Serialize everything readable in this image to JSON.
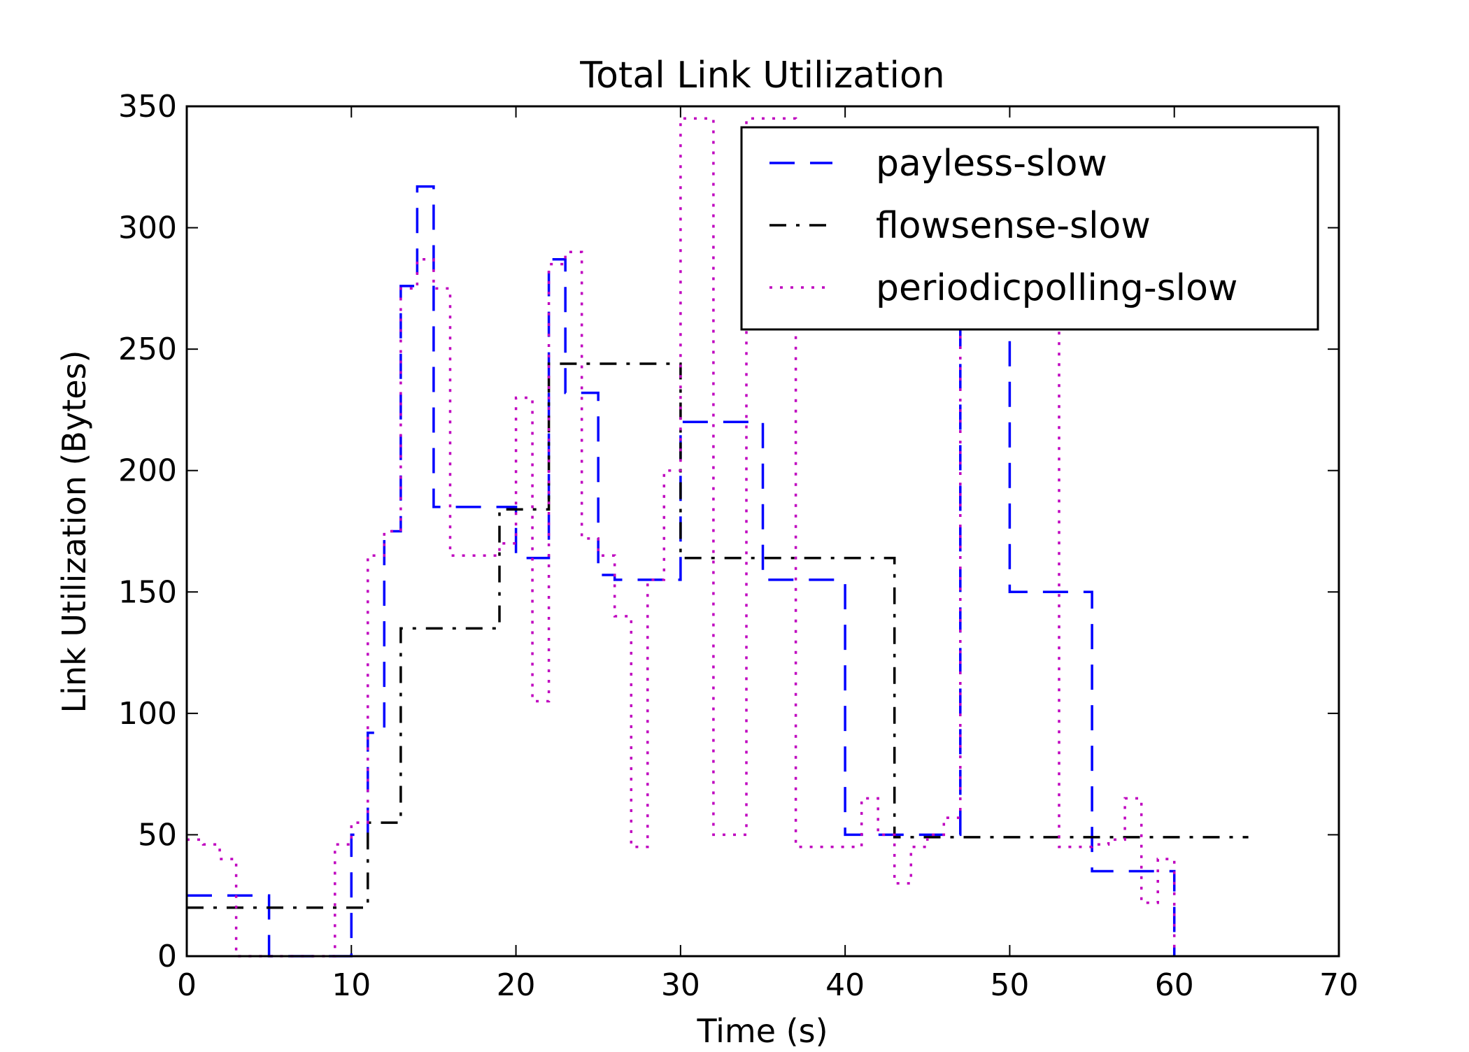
{
  "chart_data": {
    "type": "line",
    "title": "Total Link Utilization",
    "xlabel": "Time (s)",
    "ylabel": "Link Utilization (Bytes)",
    "xlim": [
      0,
      70
    ],
    "ylim": [
      0,
      350
    ],
    "xticks": [
      0,
      10,
      20,
      30,
      40,
      50,
      60,
      70
    ],
    "yticks": [
      0,
      50,
      100,
      150,
      200,
      250,
      300,
      350
    ],
    "xtick_labels": [
      "0",
      "10",
      "20",
      "30",
      "40",
      "50",
      "60",
      "70"
    ],
    "ytick_labels": [
      "0",
      "50",
      "100",
      "150",
      "200",
      "250",
      "300",
      "350"
    ],
    "grid": false,
    "legend_position": "top-right",
    "step": "post",
    "series": [
      {
        "name": "payless-slow",
        "color": "#0000ff",
        "dash": "dashed",
        "x": [
          0,
          3,
          5,
          10,
          11,
          12,
          13,
          14,
          15,
          20,
          22,
          23,
          25,
          26,
          30,
          35,
          40,
          46,
          47,
          50,
          55,
          57,
          60
        ],
        "y": [
          25,
          25,
          0,
          50,
          92,
          175,
          276,
          317,
          185,
          164,
          287,
          232,
          157,
          155,
          220,
          155,
          50,
          50,
          275,
          150,
          35,
          35,
          0
        ]
      },
      {
        "name": "flowsense-slow",
        "color": "#000000",
        "dash": "dashdot",
        "x": [
          0,
          9,
          11,
          13,
          19,
          22,
          30,
          43,
          64.5
        ],
        "y": [
          20,
          20,
          55,
          135,
          184,
          244,
          164,
          49,
          49
        ]
      },
      {
        "name": "periodicpolling-slow",
        "color": "#bf00bf",
        "dash": "dotted",
        "x": [
          0,
          1,
          2,
          3,
          9,
          10,
          11,
          12,
          13,
          14,
          15,
          16,
          19,
          20,
          21,
          22,
          23,
          24,
          25,
          26,
          27,
          28,
          29,
          30,
          32,
          34,
          37,
          41,
          42,
          43,
          44,
          45,
          46,
          47,
          53,
          55,
          56,
          57,
          58,
          59,
          60
        ],
        "y": [
          48,
          46,
          40,
          0,
          46,
          55,
          165,
          175,
          275,
          287,
          275,
          165,
          170,
          230,
          105,
          285,
          290,
          172,
          165,
          140,
          45,
          155,
          200,
          345,
          50,
          345,
          45,
          65,
          50,
          30,
          45,
          50,
          57,
          270,
          45,
          46,
          48,
          65,
          22,
          40,
          0
        ]
      }
    ]
  }
}
